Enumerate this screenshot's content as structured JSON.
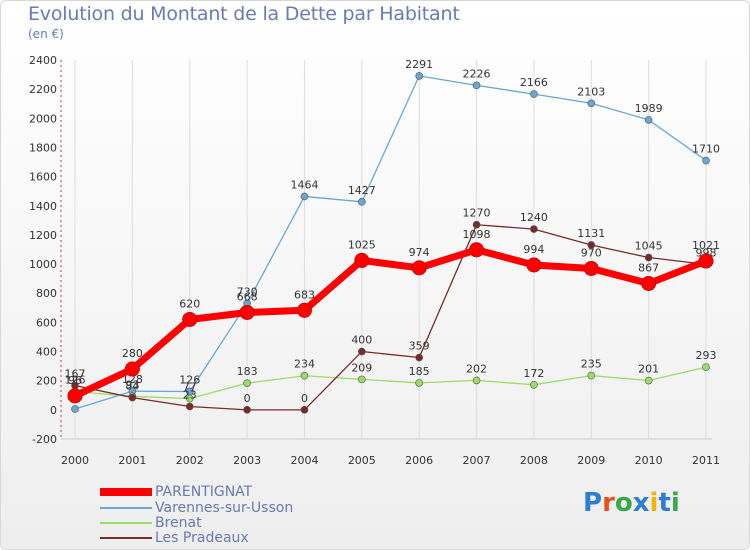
{
  "chart_data": {
    "type": "line",
    "title": "Evolution du Montant de la Dette par Habitant",
    "subtitle": "(en €)",
    "categories": [
      "2000",
      "2001",
      "2002",
      "2003",
      "2004",
      "2005",
      "2006",
      "2007",
      "2008",
      "2009",
      "2010",
      "2011"
    ],
    "ylim": [
      -200,
      2400
    ],
    "yticks": [
      -200,
      0,
      200,
      400,
      600,
      800,
      1000,
      1200,
      1400,
      1600,
      1800,
      2000,
      2200,
      2400
    ],
    "grid": "vertical",
    "legend_position": "bottom-left",
    "series": [
      {
        "name": "PARENTIGNAT",
        "color": "#ff0000",
        "values": [
          96,
          280,
          620,
          668,
          683,
          1025,
          974,
          1098,
          994,
          970,
          867,
          1021
        ]
      },
      {
        "name": "Varennes-sur-Usson",
        "color": "#6aa6d6",
        "values": [
          6,
          128,
          126,
          730,
          1464,
          1427,
          2291,
          2226,
          2166,
          2103,
          1989,
          1710
        ]
      },
      {
        "name": "Brenat",
        "color": "#99dd66",
        "values": [
          126,
          93,
          77,
          183,
          234,
          209,
          185,
          202,
          172,
          235,
          201,
          293
        ]
      },
      {
        "name": "Les Pradeaux",
        "color": "#7a2a2a",
        "values": [
          167,
          84,
          23,
          0,
          0,
          400,
          359,
          1270,
          1240,
          1131,
          1045,
          998
        ]
      }
    ]
  },
  "logo": {
    "text": "Proxiti",
    "colors": [
      "#2d7fd6",
      "#e6541a",
      "#3aa74a",
      "#2d7fd6",
      "#f5b400",
      "#2d7fd6",
      "#3aa74a"
    ]
  }
}
